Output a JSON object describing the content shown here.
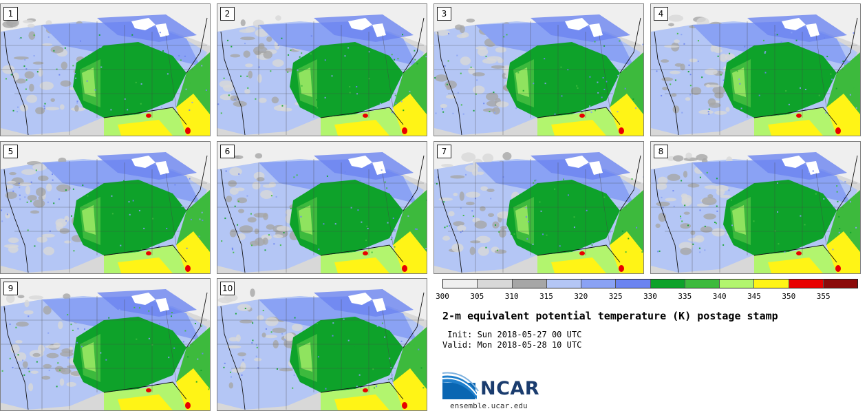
{
  "panels": [
    {
      "label": "1"
    },
    {
      "label": "2"
    },
    {
      "label": "3"
    },
    {
      "label": "4"
    },
    {
      "label": "5"
    },
    {
      "label": "6"
    },
    {
      "label": "7"
    },
    {
      "label": "8"
    },
    {
      "label": "9"
    },
    {
      "label": "10"
    }
  ],
  "colorbar": {
    "colors": [
      "#efefef",
      "#d8d8d8",
      "#a6a6a6",
      "#b4c6f5",
      "#8aa2f4",
      "#6b84f0",
      "#0ea22a",
      "#3dba3d",
      "#b2f56e",
      "#fff416",
      "#e80000",
      "#8b0a0a"
    ],
    "ticks": [
      "300",
      "305",
      "310",
      "315",
      "320",
      "325",
      "330",
      "335",
      "340",
      "345",
      "350",
      "355"
    ],
    "min": 300,
    "max": 360
  },
  "title": "2-m equivalent potential temperature (K) postage stamp",
  "init": " Init: Sun 2018-05-27 00 UTC",
  "valid": "Valid: Mon 2018-05-28 10 UTC",
  "logo_text": "NCAR",
  "site": "ensemble.ucar.edu"
}
